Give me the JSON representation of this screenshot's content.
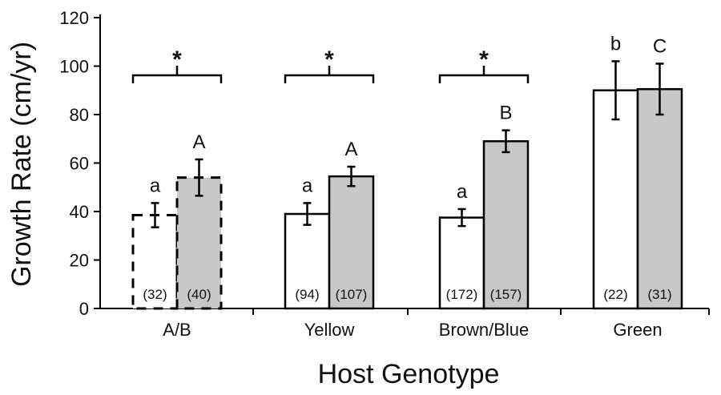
{
  "chart_data": {
    "type": "bar",
    "xlabel": "Host Genotype",
    "ylabel": "Growth Rate (cm/yr)",
    "ylim": [
      0,
      120
    ],
    "yticks": [
      "0",
      "20",
      "40",
      "60",
      "80",
      "100",
      "120"
    ],
    "grid": false,
    "legend": "none",
    "categories": [
      "A/B",
      "Yellow",
      "Brown/Blue",
      "Green"
    ],
    "series": [
      {
        "fill": "#ffffff",
        "values": [
          38.5,
          39,
          37.5,
          90
        ],
        "errors": [
          5,
          4.5,
          3.5,
          12
        ],
        "n_labels": [
          "(32)",
          "(94)",
          "(172)",
          "(22)"
        ],
        "letters": [
          "a",
          "a",
          "a",
          "b"
        ],
        "dashed": [
          true,
          false,
          false,
          false
        ]
      },
      {
        "fill": "#c8c8c8",
        "values": [
          54,
          54.5,
          69,
          90.5
        ],
        "errors": [
          7.5,
          4,
          4.5,
          10.5
        ],
        "n_labels": [
          "(40)",
          "(107)",
          "(157)",
          "(31)"
        ],
        "letters": [
          "A",
          "A",
          "B",
          "C"
        ],
        "dashed": [
          true,
          false,
          false,
          false
        ]
      }
    ],
    "significance": [
      "*",
      "*",
      "*",
      ""
    ]
  }
}
